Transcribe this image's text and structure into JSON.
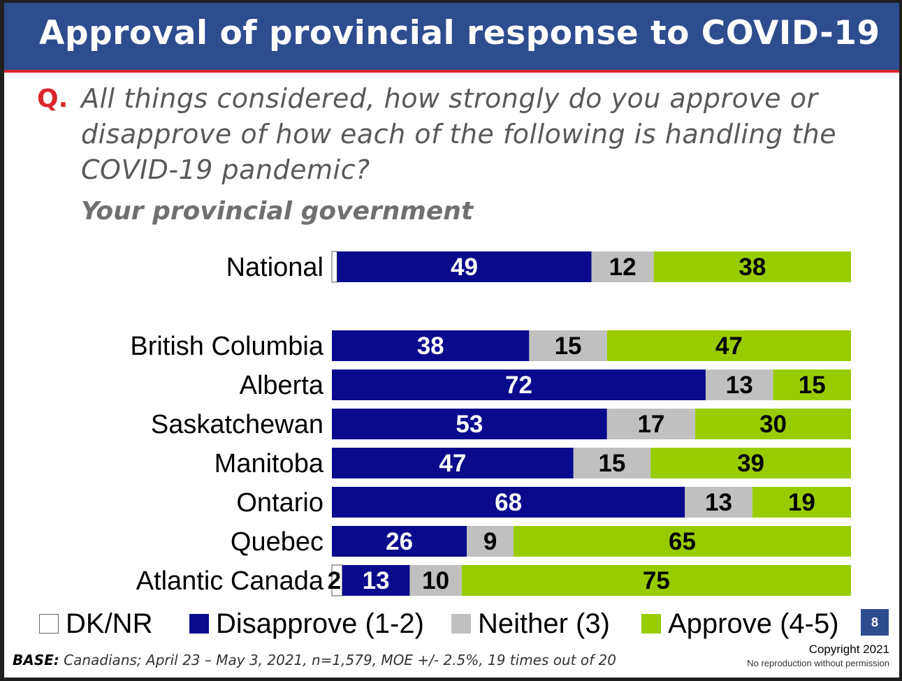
{
  "title": "Approval of provincial response to COVID-19",
  "question": {
    "label": "Q.",
    "text": "All things considered, how strongly do you approve or disapprove of how each of the following is handling the COVID-19 pandemic?"
  },
  "subtitle": "Your provincial government",
  "colors": {
    "dk": "#ffffff",
    "disapprove": "#0a0a8c",
    "neither": "#c0c0c0",
    "approve": "#99cc00",
    "title_bar": "#2e4d8f",
    "accent_red": "#d9262b"
  },
  "chart_data": {
    "type": "bar",
    "orientation": "horizontal",
    "stacked": true,
    "xlim": [
      0,
      100
    ],
    "categories": [
      "National",
      "British Columbia",
      "Alberta",
      "Saskatchewan",
      "Manitoba",
      "Ontario",
      "Quebec",
      "Atlantic Canada"
    ],
    "series": [
      {
        "name": "DK/NR",
        "values": [
          1,
          0,
          0,
          0,
          0,
          0,
          0,
          2
        ],
        "labels": [
          "",
          "",
          "",
          "",
          "",
          "",
          "",
          "2"
        ]
      },
      {
        "name": "Disapprove (1-2)",
        "values": [
          49,
          38,
          72,
          53,
          47,
          68,
          26,
          13
        ],
        "labels": [
          "49",
          "38",
          "72",
          "53",
          "47",
          "68",
          "26",
          "13"
        ]
      },
      {
        "name": "Neither (3)",
        "values": [
          12,
          15,
          13,
          17,
          15,
          13,
          9,
          10
        ],
        "labels": [
          "12",
          "15",
          "13",
          "17",
          "15",
          "13",
          "9",
          "10"
        ]
      },
      {
        "name": "Approve (4-5)",
        "values": [
          38,
          47,
          15,
          30,
          39,
          19,
          65,
          75
        ],
        "labels": [
          "38",
          "47",
          "15",
          "30",
          "39",
          "19",
          "65",
          "75"
        ]
      }
    ],
    "legend": [
      "DK/NR",
      "Disapprove (1-2)",
      "Neither (3)",
      "Approve (4-5)"
    ],
    "legend_position": "bottom"
  },
  "page_number": "8",
  "footer": {
    "base_label": "BASE:",
    "base_text": " Canadians; April 23 – May 3, 2021, n=1,579, MOE +/- 2.5%, 19 times out of 20",
    "copyright": "Copyright 2021",
    "no_reproduction": "No reproduction without permission"
  }
}
